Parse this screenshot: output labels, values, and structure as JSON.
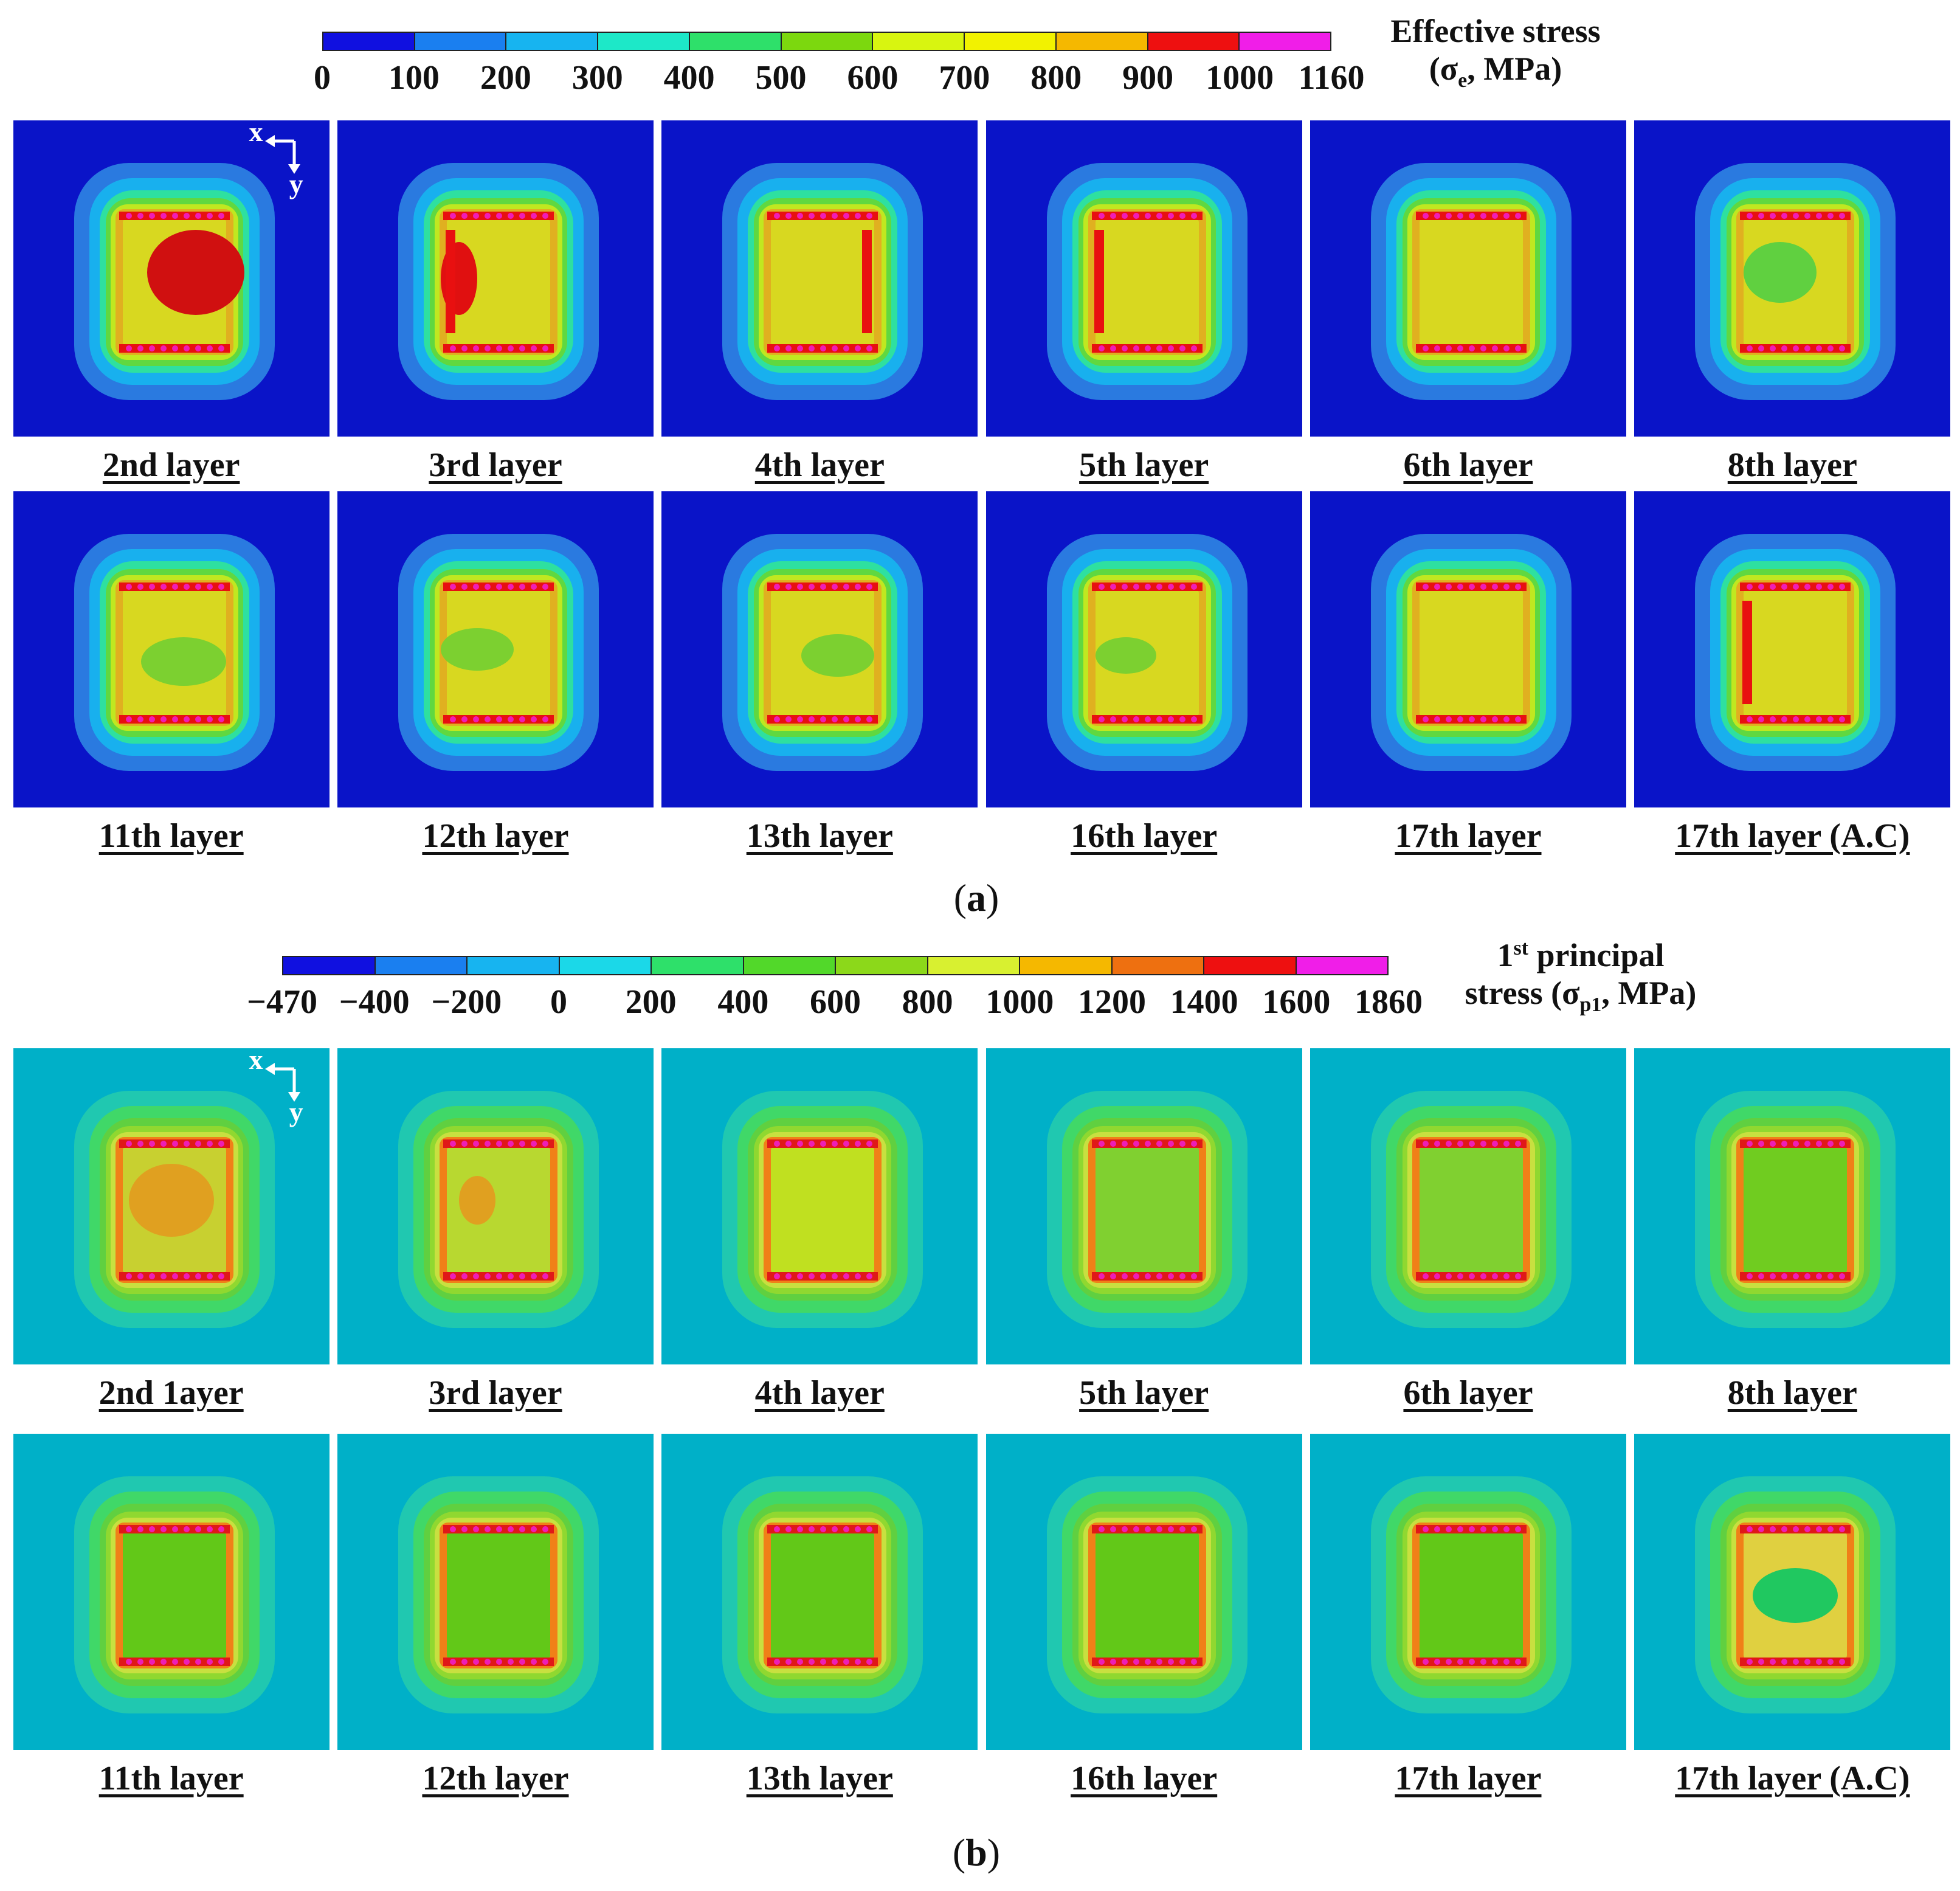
{
  "figure_a": {
    "colorbar": {
      "ticks": [
        "0",
        "100",
        "200",
        "300",
        "400",
        "500",
        "600",
        "700",
        "800",
        "900",
        "1000",
        "1160"
      ],
      "colors": [
        "#1010e0",
        "#1a7ff0",
        "#17b4f0",
        "#1de8c8",
        "#2ee06a",
        "#7cd80e",
        "#d8f510",
        "#f2f200",
        "#f5b800",
        "#ee1010",
        "#f01ee8"
      ],
      "title_line1": "Effective stress",
      "title_sym": "σ",
      "title_sub": "e",
      "title_unit": ", MPa)",
      "title_open": "("
    },
    "labels": [
      "2nd layer",
      "3rd layer",
      "4th layer",
      "5th layer",
      "6th layer",
      "8th layer",
      "11th layer",
      "12th layer",
      "13th layer",
      "16th layer",
      "17th layer",
      "17th layer (A.C)"
    ],
    "caption_letter": "a",
    "axis_x": "x",
    "axis_y": "y"
  },
  "figure_b": {
    "colorbar": {
      "ticks": [
        "−470",
        "−400",
        "−200",
        "0",
        "200",
        "400",
        "600",
        "800",
        "1000",
        "1200",
        "1400",
        "1600",
        "1860"
      ],
      "colors": [
        "#1010e0",
        "#1a7ff0",
        "#17b4f0",
        "#1bd8e8",
        "#2ee06a",
        "#52d82a",
        "#8cd81a",
        "#d8f030",
        "#f5b800",
        "#ee7010",
        "#ee1010",
        "#f01ee8"
      ],
      "title_line1_a": "1",
      "title_line1_sup": "st",
      "title_line1_b": " principal",
      "title_line2_a": "stress (",
      "title_sym": "σ",
      "title_sub": "p1",
      "title_unit": ", MPa)"
    },
    "labels": [
      "2nd 1ayer",
      "3rd layer",
      "4th layer",
      "5th layer",
      "6th layer",
      "8th layer",
      "11th layer",
      "12th layer",
      "13th layer",
      "16th layer",
      "17th layer",
      "17th layer (A.C)"
    ],
    "caption_letter": "b",
    "axis_x": "x",
    "axis_y": "y"
  },
  "caption_open": "(",
  "caption_close": ")",
  "colors": {
    "a_background": "#0a14c8",
    "b_background": "#00b0c8"
  }
}
